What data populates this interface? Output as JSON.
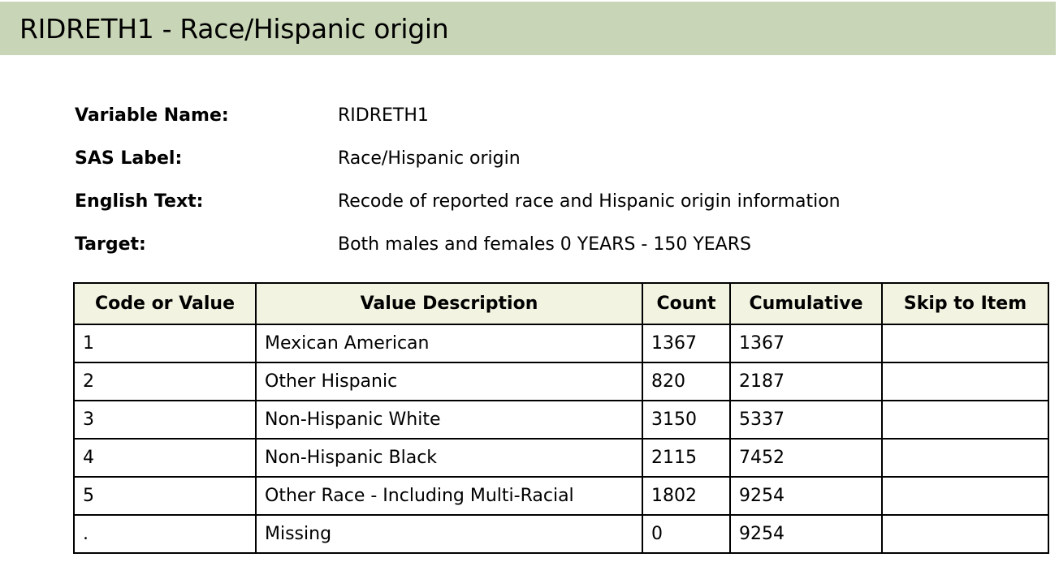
{
  "header": {
    "title": "RIDRETH1 - Race/Hispanic origin"
  },
  "meta": [
    {
      "label": "Variable Name:",
      "value": "RIDRETH1"
    },
    {
      "label": "SAS Label:",
      "value": "Race/Hispanic origin"
    },
    {
      "label": "English Text:",
      "value": "Recode of reported race and Hispanic origin information"
    },
    {
      "label": "Target:",
      "value": "Both males and females 0 YEARS - 150 YEARS"
    }
  ],
  "table": {
    "headers": [
      "Code or Value",
      "Value Description",
      "Count",
      "Cumulative",
      "Skip to Item"
    ],
    "rows": [
      [
        "1",
        "Mexican American",
        "1367",
        "1367",
        ""
      ],
      [
        "2",
        "Other Hispanic",
        "820",
        "2187",
        ""
      ],
      [
        "3",
        "Non-Hispanic White",
        "3150",
        "5337",
        ""
      ],
      [
        "4",
        "Non-Hispanic Black",
        "2115",
        "7452",
        ""
      ],
      [
        "5",
        "Other Race - Including Multi-Racial",
        "1802",
        "9254",
        ""
      ],
      [
        ".",
        "Missing",
        "0",
        "9254",
        ""
      ]
    ]
  },
  "colors": {
    "header_bar": "#c8d5b6",
    "table_header": "#f2f3e1",
    "border": "#000000"
  }
}
